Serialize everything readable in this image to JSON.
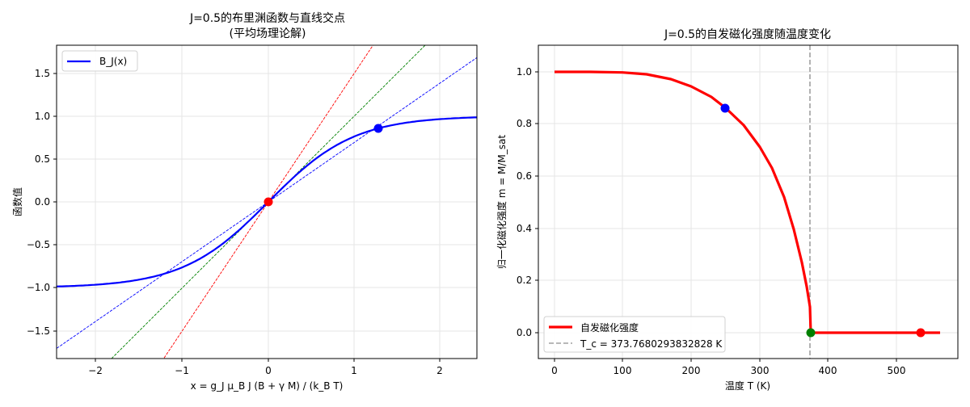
{
  "chart_data": [
    {
      "type": "line",
      "title": "J=0.5的布里渊函数与直线交点\n(平均场理论解)",
      "title_line1": "J=0.5的布里渊函数与直线交点",
      "title_line2": "(平均场理论解)",
      "xlabel": "x = g_J μ_B J (B + γ M) / (k_B T)",
      "ylabel": "函数值",
      "xlim": [
        -2.45,
        2.42
      ],
      "ylim": [
        -1.83,
        1.83
      ],
      "xticks": [
        -2,
        -1,
        0,
        1,
        2
      ],
      "xtick_labels": [
        "−2",
        "−1",
        "0",
        "1",
        "2"
      ],
      "yticks": [
        1.5,
        1.0,
        0.5,
        0.0,
        -0.5,
        -1.0,
        -1.5
      ],
      "ytick_labels": [
        "1.5",
        "1.0",
        "0.5",
        "0.0",
        "−0.5",
        "−1.0",
        "−1.5"
      ],
      "grid": true,
      "legend_position": "upper left",
      "legend": [
        "B_J(x)"
      ],
      "series": [
        {
          "name": "B_J(x)",
          "function": "tanh(x)",
          "color": "#0000ff",
          "style": "solid",
          "width": 2
        },
        {
          "name": "line slope 1.5",
          "slope": 1.5,
          "color": "#ff0000",
          "style": "dashed"
        },
        {
          "name": "line slope 1.0",
          "slope": 1.0,
          "color": "#008000",
          "style": "dashed"
        },
        {
          "name": "line slope 0.66",
          "slope": 0.66,
          "color": "#0000ff",
          "style": "dashed"
        }
      ],
      "points": [
        {
          "x": 0.0,
          "y": 0.0,
          "color": "#ff0000"
        },
        {
          "x": 1.3,
          "y": 0.86,
          "color": "#0000ff"
        }
      ]
    },
    {
      "type": "line",
      "title": "J=0.5的自发磁化强度随温度变化",
      "xlabel": "温度 T (K)",
      "ylabel": "归一化磁化强度 m = M/M_sat",
      "xlim": [
        -22,
        590
      ],
      "ylim": [
        -0.1,
        1.1
      ],
      "xticks": [
        0,
        100,
        200,
        300,
        400,
        500
      ],
      "yticks": [
        1.0,
        0.8,
        0.6,
        0.4,
        0.2,
        0.0
      ],
      "ytick_labels": [
        "1.0",
        "0.8",
        "0.6",
        "0.4",
        "0.2",
        "0.0"
      ],
      "grid": true,
      "legend_position": "lower left",
      "legend": [
        "自发磁化强度",
        "T_c = 373.7680293832828 K"
      ],
      "series": [
        {
          "name": "自发磁化强度",
          "color": "#ff0000",
          "style": "solid",
          "width": 3,
          "x": [
            0,
            50,
            100,
            150,
            200,
            250,
            300,
            330,
            350,
            365,
            372,
            373.77,
            400,
            450,
            500,
            560
          ],
          "y": [
            1.0,
            1.0,
            0.998,
            0.975,
            0.93,
            0.86,
            0.72,
            0.6,
            0.46,
            0.3,
            0.17,
            0.0,
            0.0,
            0.0,
            0.0,
            0.0
          ]
        },
        {
          "name": "T_c = 373.7680293832828 K",
          "x": 373.768,
          "color": "#a0a0a0",
          "style": "dashed",
          "orientation": "vertical"
        }
      ],
      "points": [
        {
          "x": 250,
          "y": 0.86,
          "color": "#0000ff"
        },
        {
          "x": 373.77,
          "y": 0.0,
          "color": "#008000"
        },
        {
          "x": 535,
          "y": 0.0,
          "color": "#ff0000"
        }
      ]
    }
  ],
  "left": {
    "title_line1": "J=0.5的布里渊函数与直线交点",
    "title_line2": "(平均场理论解)",
    "xlabel": "x = g_J μ_B J (B + γ M) / (k_B T)",
    "ylabel": "函数值",
    "legend_label": "B_J(x)",
    "xticks": [
      "−2",
      "−1",
      "0",
      "1",
      "2"
    ],
    "yticks": [
      "1.5",
      "1.0",
      "0.5",
      "0.0",
      "−0.5",
      "−1.0",
      "−1.5"
    ]
  },
  "right": {
    "title": "J=0.5的自发磁化强度随温度变化",
    "xlabel": "温度 T (K)",
    "ylabel": "归一化磁化强度 m = M/M_sat",
    "legend_label_1": "自发磁化强度",
    "legend_label_2": "T_c = 373.7680293832828 K",
    "xticks": [
      "0",
      "100",
      "200",
      "300",
      "400",
      "500"
    ],
    "yticks": [
      "1.0",
      "0.8",
      "0.6",
      "0.4",
      "0.2",
      "0.0"
    ]
  },
  "colors": {
    "blue": "#0000ff",
    "red": "#ff0000",
    "green": "#008000",
    "gray": "#a0a0a0",
    "grid": "#e6e6e6"
  }
}
